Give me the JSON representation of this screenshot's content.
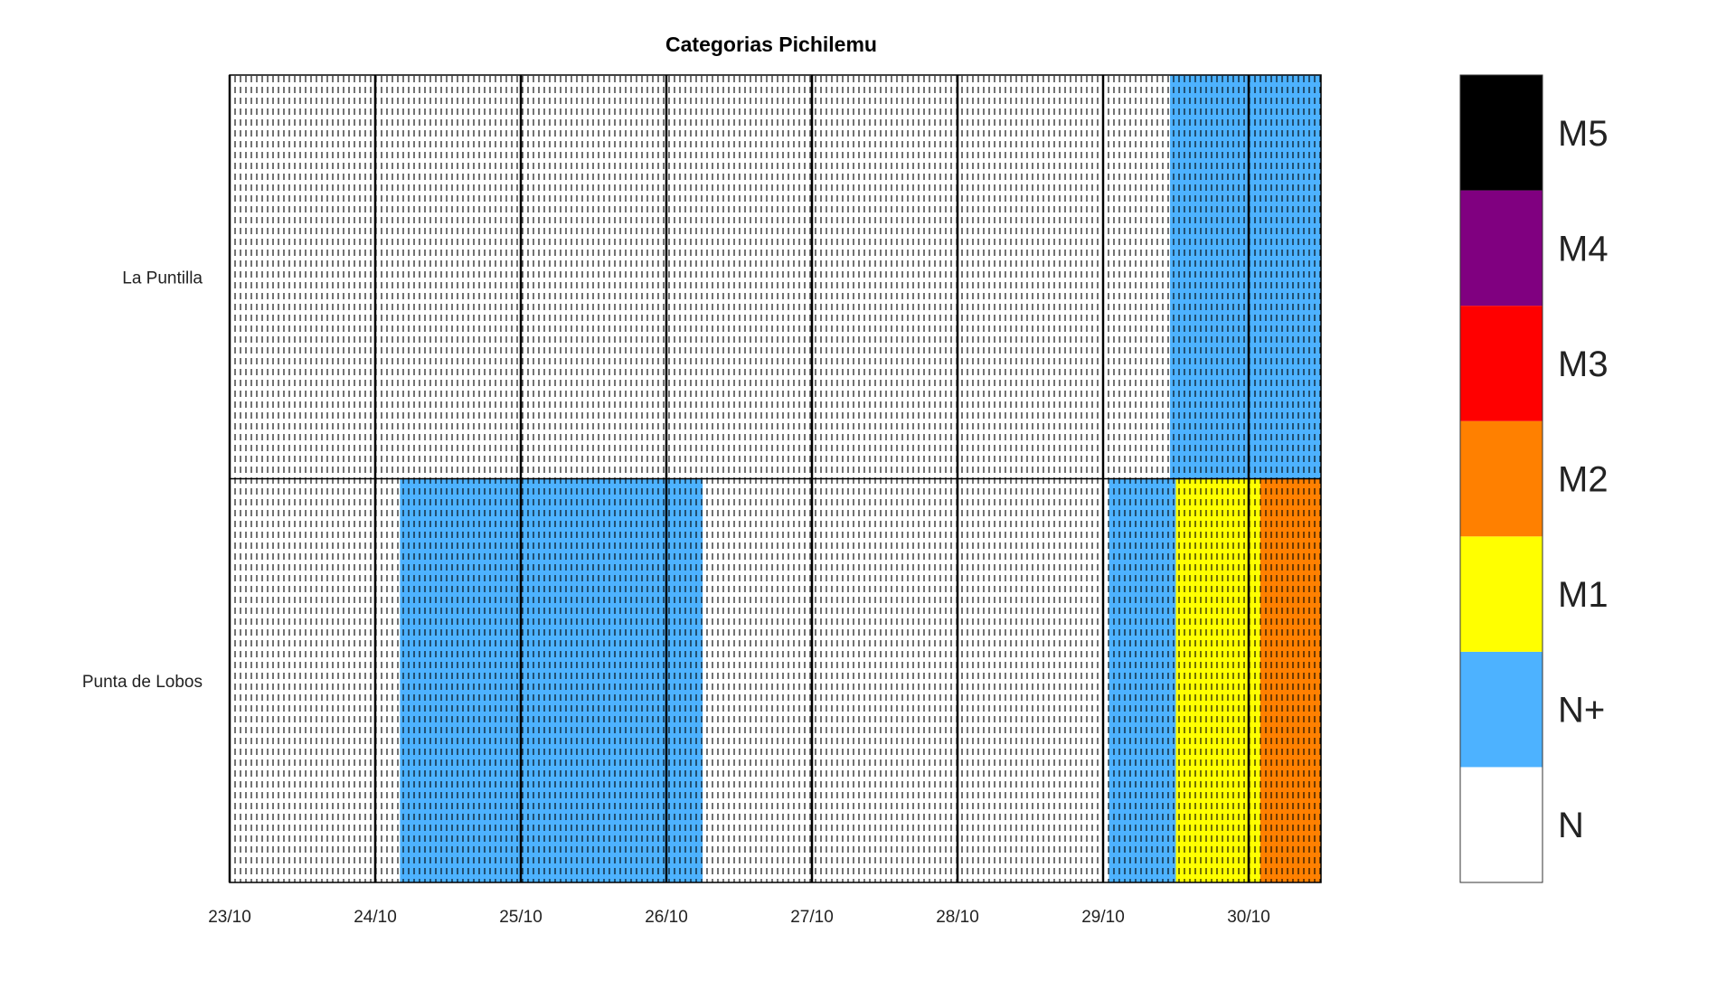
{
  "chart_data": {
    "type": "heatmap",
    "title": "Categorias Pichilemu",
    "xlabel": "",
    "ylabel": "",
    "x_ticks": [
      "23/10",
      "24/10",
      "25/10",
      "26/10",
      "27/10",
      "28/10",
      "29/10",
      "30/10"
    ],
    "x_range_days": [
      0,
      7.5
    ],
    "rows": [
      "La Puntilla",
      "Punta de Lobos"
    ],
    "segments": [
      {
        "row": "La Puntilla",
        "category": "N",
        "start": 0,
        "end": 6.46
      },
      {
        "row": "La Puntilla",
        "category": "N+",
        "start": 6.46,
        "end": 7.5
      },
      {
        "row": "Punta de Lobos",
        "category": "N",
        "start": 0,
        "end": 1.17
      },
      {
        "row": "Punta de Lobos",
        "category": "N+",
        "start": 1.17,
        "end": 3.25
      },
      {
        "row": "Punta de Lobos",
        "category": "N",
        "start": 3.25,
        "end": 6.04
      },
      {
        "row": "Punta de Lobos",
        "category": "N+",
        "start": 6.04,
        "end": 6.5
      },
      {
        "row": "Punta de Lobos",
        "category": "M1",
        "start": 6.5,
        "end": 7.08
      },
      {
        "row": "Punta de Lobos",
        "category": "M2",
        "start": 7.08,
        "end": 7.5
      }
    ],
    "categories": [
      {
        "name": "N",
        "color": "#ffffff"
      },
      {
        "name": "N+",
        "color": "#4db2ff"
      },
      {
        "name": "M1",
        "color": "#ffff00"
      },
      {
        "name": "M2",
        "color": "#ff8000"
      },
      {
        "name": "M3",
        "color": "#ff0000"
      },
      {
        "name": "M4",
        "color": "#800080"
      },
      {
        "name": "M5",
        "color": "#000000"
      }
    ],
    "legend": "right",
    "grid": false
  }
}
